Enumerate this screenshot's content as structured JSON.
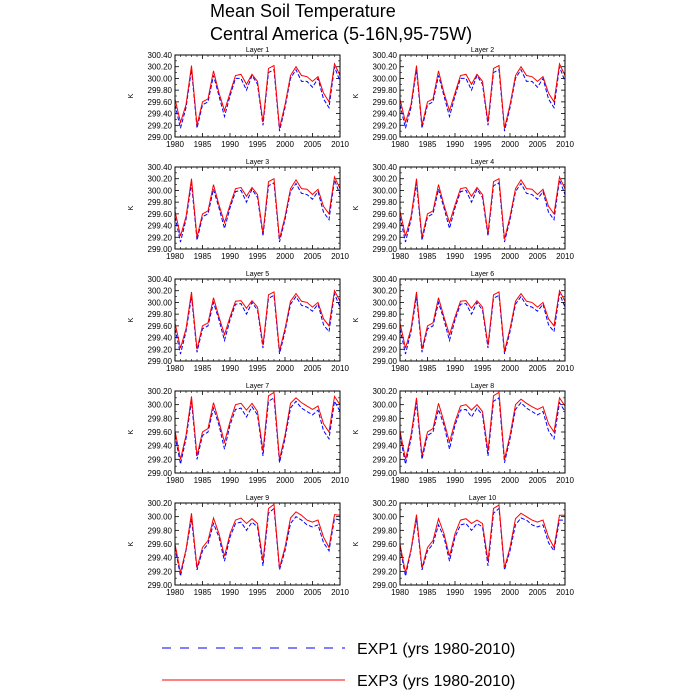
{
  "chart_data": {
    "type": "line",
    "title_line1": "Mean Soil Temperature",
    "title_line2": "Central America (5-16N,95-75W)",
    "ylabel": "K",
    "xlim": [
      1980,
      2010
    ],
    "x_ticks": [
      "1980",
      "1985",
      "1990",
      "1995",
      "2000",
      "2005",
      "2010"
    ],
    "x": [
      1980,
      1981,
      1982,
      1983,
      1984,
      1985,
      1986,
      1987,
      1988,
      1989,
      1990,
      1991,
      1992,
      1993,
      1994,
      1995,
      1996,
      1997,
      1998,
      1999,
      2000,
      2001,
      2002,
      2003,
      2004,
      2005,
      2006,
      2007,
      2008,
      2009,
      2010
    ],
    "legend": [
      {
        "name": "EXP1 (yrs 1980-2010)",
        "color": "#0000ff",
        "style": "dashed"
      },
      {
        "name": "EXP3 (yrs 1980-2010)",
        "color": "#ff0000",
        "style": "solid"
      }
    ],
    "panels": [
      {
        "title": "Layer 1",
        "ylim": [
          299.0,
          300.4
        ],
        "y_ticks": [
          "299.00",
          "299.20",
          "299.40",
          "299.60",
          "299.80",
          "300.00",
          "300.20",
          "300.40"
        ],
        "series": [
          {
            "values": [
              299.55,
              299.15,
              299.5,
              300.15,
              299.15,
              299.55,
              299.6,
              300.05,
              299.7,
              299.35,
              299.7,
              300.0,
              300.0,
              299.8,
              300.05,
              299.9,
              299.2,
              300.1,
              300.15,
              299.1,
              299.5,
              300.0,
              300.15,
              299.95,
              299.95,
              299.85,
              300.0,
              299.65,
              299.5,
              300.2,
              299.95
            ]
          },
          {
            "values": [
              299.65,
              299.25,
              299.55,
              300.22,
              299.2,
              299.6,
              299.65,
              300.13,
              299.75,
              299.45,
              299.75,
              300.05,
              300.07,
              299.9,
              300.07,
              299.95,
              299.25,
              300.17,
              300.22,
              299.15,
              299.55,
              300.05,
              300.2,
              300.05,
              300.03,
              299.95,
              300.03,
              299.75,
              299.6,
              300.25,
              300.05
            ]
          }
        ]
      },
      {
        "title": "Layer 2",
        "ylim": [
          299.0,
          300.4
        ],
        "y_ticks": [
          "299.00",
          "299.20",
          "299.40",
          "299.60",
          "299.80",
          "300.00",
          "300.20",
          "300.40"
        ],
        "series": [
          {
            "values": [
              299.55,
              299.15,
              299.5,
              300.15,
              299.15,
              299.55,
              299.6,
              300.05,
              299.7,
              299.35,
              299.7,
              300.0,
              300.0,
              299.8,
              300.05,
              299.9,
              299.2,
              300.1,
              300.15,
              299.1,
              299.5,
              300.0,
              300.15,
              299.95,
              299.95,
              299.85,
              300.0,
              299.65,
              299.5,
              300.2,
              299.95
            ]
          },
          {
            "values": [
              299.65,
              299.25,
              299.55,
              300.22,
              299.2,
              299.6,
              299.65,
              300.13,
              299.75,
              299.45,
              299.75,
              300.05,
              300.07,
              299.9,
              300.07,
              299.95,
              299.25,
              300.17,
              300.22,
              299.15,
              299.55,
              300.05,
              300.2,
              300.05,
              300.03,
              299.95,
              300.03,
              299.75,
              299.6,
              300.25,
              300.05
            ]
          }
        ]
      },
      {
        "title": "Layer 3",
        "ylim": [
          299.0,
          300.4
        ],
        "y_ticks": [
          "299.00",
          "299.20",
          "299.40",
          "299.60",
          "299.80",
          "300.00",
          "300.20",
          "300.40"
        ],
        "series": [
          {
            "values": [
              299.55,
              299.12,
              299.5,
              300.12,
              299.15,
              299.55,
              299.6,
              300.02,
              299.7,
              299.35,
              299.7,
              299.98,
              300.0,
              299.8,
              300.02,
              299.88,
              299.22,
              300.08,
              300.13,
              299.12,
              299.5,
              299.98,
              300.12,
              299.95,
              299.93,
              299.85,
              299.98,
              299.63,
              299.5,
              300.18,
              299.93
            ]
          },
          {
            "values": [
              299.65,
              299.22,
              299.55,
              300.2,
              299.2,
              299.6,
              299.65,
              300.1,
              299.75,
              299.45,
              299.75,
              300.03,
              300.05,
              299.9,
              300.05,
              299.93,
              299.27,
              300.15,
              300.2,
              299.17,
              299.55,
              300.03,
              300.18,
              300.03,
              300.02,
              299.93,
              300.02,
              299.73,
              299.6,
              300.23,
              300.03
            ]
          }
        ]
      },
      {
        "title": "Layer 4",
        "ylim": [
          299.0,
          300.4
        ],
        "y_ticks": [
          "299.00",
          "299.20",
          "299.40",
          "299.60",
          "299.80",
          "300.00",
          "300.20",
          "300.40"
        ],
        "series": [
          {
            "values": [
              299.55,
              299.12,
              299.5,
              300.12,
              299.15,
              299.55,
              299.6,
              300.02,
              299.7,
              299.35,
              299.7,
              299.98,
              300.0,
              299.8,
              300.02,
              299.88,
              299.22,
              300.08,
              300.13,
              299.12,
              299.5,
              299.98,
              300.12,
              299.95,
              299.93,
              299.85,
              299.98,
              299.63,
              299.5,
              300.18,
              299.93
            ]
          },
          {
            "values": [
              299.65,
              299.22,
              299.55,
              300.2,
              299.2,
              299.6,
              299.65,
              300.1,
              299.75,
              299.45,
              299.75,
              300.03,
              300.05,
              299.9,
              300.05,
              299.93,
              299.27,
              300.15,
              300.2,
              299.17,
              299.55,
              300.03,
              300.18,
              300.03,
              300.02,
              299.93,
              300.02,
              299.73,
              299.6,
              300.23,
              300.03
            ]
          }
        ]
      },
      {
        "title": "Layer 5",
        "ylim": [
          299.0,
          300.4
        ],
        "y_ticks": [
          "299.00",
          "299.20",
          "299.40",
          "299.60",
          "299.80",
          "300.00",
          "300.20",
          "300.40"
        ],
        "series": [
          {
            "values": [
              299.55,
              299.12,
              299.5,
              300.1,
              299.15,
              299.55,
              299.6,
              300.0,
              299.7,
              299.35,
              299.7,
              299.97,
              299.98,
              299.8,
              300.0,
              299.87,
              299.22,
              300.07,
              300.12,
              299.12,
              299.5,
              299.97,
              300.1,
              299.95,
              299.92,
              299.85,
              299.97,
              299.62,
              299.5,
              300.15,
              299.92
            ]
          },
          {
            "values": [
              299.65,
              299.22,
              299.55,
              300.18,
              299.2,
              299.6,
              299.65,
              300.08,
              299.75,
              299.45,
              299.75,
              300.02,
              300.03,
              299.9,
              300.03,
              299.92,
              299.27,
              300.13,
              300.18,
              299.17,
              299.55,
              300.02,
              300.15,
              300.02,
              300.0,
              299.92,
              300.0,
              299.72,
              299.6,
              300.2,
              300.02
            ]
          }
        ]
      },
      {
        "title": "Layer 6",
        "ylim": [
          299.0,
          300.4
        ],
        "y_ticks": [
          "299.00",
          "299.20",
          "299.40",
          "299.60",
          "299.80",
          "300.00",
          "300.20",
          "300.40"
        ],
        "series": [
          {
            "values": [
              299.55,
              299.12,
              299.5,
              300.1,
              299.15,
              299.55,
              299.6,
              300.0,
              299.7,
              299.35,
              299.7,
              299.97,
              299.98,
              299.8,
              300.0,
              299.87,
              299.22,
              300.07,
              300.12,
              299.12,
              299.5,
              299.97,
              300.1,
              299.95,
              299.92,
              299.85,
              299.97,
              299.62,
              299.5,
              300.15,
              299.92
            ]
          },
          {
            "values": [
              299.65,
              299.22,
              299.55,
              300.18,
              299.2,
              299.6,
              299.65,
              300.08,
              299.75,
              299.45,
              299.75,
              300.02,
              300.03,
              299.9,
              300.03,
              299.92,
              299.27,
              300.13,
              300.18,
              299.17,
              299.55,
              300.02,
              300.15,
              300.02,
              300.0,
              299.92,
              300.0,
              299.72,
              299.6,
              300.2,
              300.02
            ]
          }
        ]
      },
      {
        "title": "Layer 7",
        "ylim": [
          299.0,
          300.2
        ],
        "y_ticks": [
          "299.00",
          "299.20",
          "299.40",
          "299.60",
          "299.80",
          "300.00",
          "300.20"
        ],
        "series": [
          {
            "values": [
              299.55,
              299.13,
              299.5,
              300.05,
              299.2,
              299.55,
              299.6,
              299.95,
              299.7,
              299.35,
              299.7,
              299.93,
              299.95,
              299.82,
              299.97,
              299.85,
              299.25,
              300.05,
              300.1,
              299.15,
              299.5,
              299.95,
              300.05,
              299.95,
              299.9,
              299.85,
              299.92,
              299.62,
              299.5,
              300.05,
              299.9
            ]
          },
          {
            "values": [
              299.62,
              299.2,
              299.55,
              300.12,
              299.25,
              299.6,
              299.65,
              300.03,
              299.75,
              299.45,
              299.75,
              300.0,
              300.02,
              299.92,
              300.02,
              299.9,
              299.32,
              300.13,
              300.18,
              299.2,
              299.55,
              300.02,
              300.1,
              300.03,
              299.98,
              299.93,
              299.98,
              299.72,
              299.6,
              300.12,
              300.0
            ]
          }
        ]
      },
      {
        "title": "Layer 8",
        "ylim": [
          299.0,
          300.2
        ],
        "y_ticks": [
          "299.00",
          "299.20",
          "299.40",
          "299.60",
          "299.80",
          "300.00",
          "300.20"
        ],
        "series": [
          {
            "values": [
              299.55,
              299.13,
              299.5,
              300.03,
              299.2,
              299.55,
              299.6,
              299.93,
              299.7,
              299.35,
              299.7,
              299.92,
              299.93,
              299.82,
              299.95,
              299.85,
              299.25,
              300.05,
              300.1,
              299.15,
              299.5,
              299.93,
              300.03,
              299.95,
              299.9,
              299.85,
              299.9,
              299.62,
              299.5,
              300.03,
              299.9
            ]
          },
          {
            "values": [
              299.62,
              299.2,
              299.55,
              300.1,
              299.25,
              299.6,
              299.65,
              300.02,
              299.75,
              299.45,
              299.75,
              299.98,
              300.0,
              299.92,
              300.0,
              299.9,
              299.32,
              300.13,
              300.18,
              299.2,
              299.55,
              300.0,
              300.08,
              300.02,
              299.97,
              299.93,
              299.97,
              299.72,
              299.6,
              300.1,
              299.98
            ]
          }
        ]
      },
      {
        "title": "Layer 9",
        "ylim": [
          299.0,
          300.2
        ],
        "y_ticks": [
          "299.00",
          "299.20",
          "299.40",
          "299.60",
          "299.80",
          "300.00",
          "300.20"
        ],
        "series": [
          {
            "values": [
              299.55,
              299.13,
              299.5,
              299.97,
              299.22,
              299.5,
              299.6,
              299.9,
              299.7,
              299.35,
              299.7,
              299.9,
              299.92,
              299.8,
              299.92,
              299.85,
              299.28,
              300.05,
              300.12,
              299.22,
              299.5,
              299.9,
              300.0,
              299.95,
              299.88,
              299.85,
              299.88,
              299.62,
              299.5,
              299.97,
              299.95
            ]
          },
          {
            "values": [
              299.6,
              299.18,
              299.52,
              300.05,
              299.25,
              299.55,
              299.65,
              299.98,
              299.75,
              299.42,
              299.75,
              299.95,
              299.98,
              299.9,
              299.97,
              299.9,
              299.35,
              300.12,
              300.18,
              299.25,
              299.55,
              299.98,
              300.07,
              300.02,
              299.95,
              299.92,
              299.95,
              299.7,
              299.55,
              300.03,
              300.02
            ]
          }
        ]
      },
      {
        "title": "Layer 10",
        "ylim": [
          299.0,
          300.2
        ],
        "y_ticks": [
          "299.00",
          "299.20",
          "299.40",
          "299.60",
          "299.80",
          "300.00",
          "300.20"
        ],
        "series": [
          {
            "values": [
              299.55,
              299.13,
              299.5,
              299.97,
              299.22,
              299.5,
              299.6,
              299.88,
              299.7,
              299.35,
              299.7,
              299.88,
              299.9,
              299.8,
              299.9,
              299.85,
              299.28,
              300.05,
              300.12,
              299.22,
              299.5,
              299.88,
              299.98,
              299.95,
              299.88,
              299.85,
              299.88,
              299.62,
              299.5,
              299.95,
              299.95
            ]
          },
          {
            "values": [
              299.6,
              299.18,
              299.52,
              300.03,
              299.25,
              299.55,
              299.65,
              299.97,
              299.75,
              299.42,
              299.75,
              299.95,
              299.97,
              299.9,
              299.95,
              299.9,
              299.35,
              300.12,
              300.17,
              299.25,
              299.55,
              299.97,
              300.05,
              300.0,
              299.95,
              299.92,
              299.95,
              299.7,
              299.55,
              300.02,
              300.02
            ]
          }
        ]
      }
    ]
  }
}
